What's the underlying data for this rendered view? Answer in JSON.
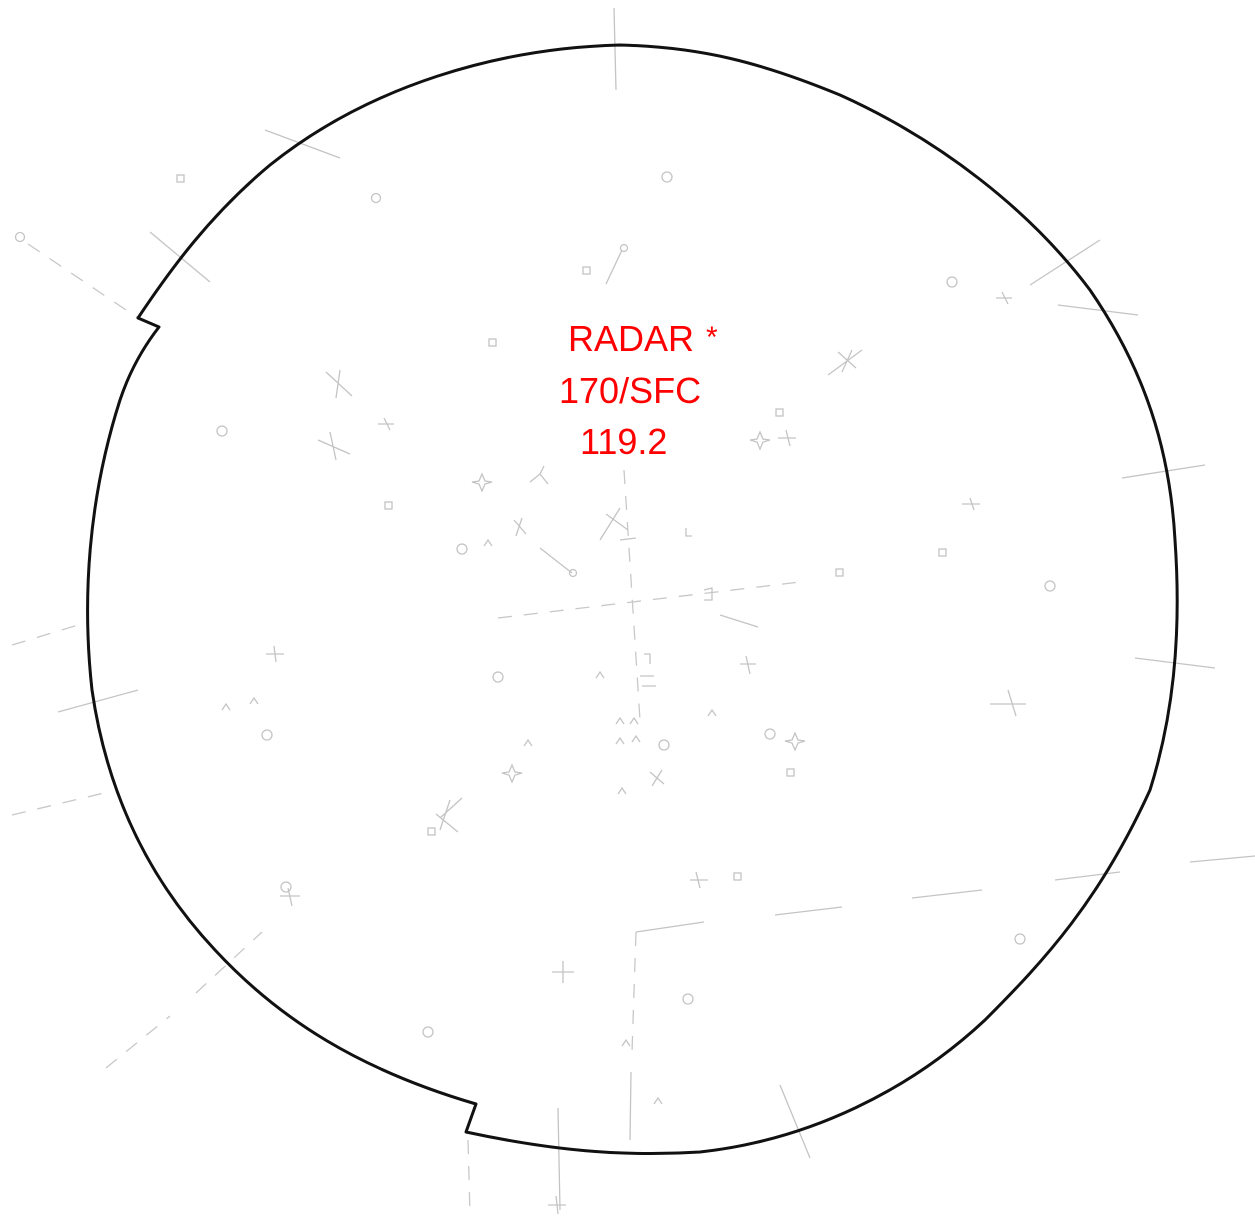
{
  "airspace_label": {
    "type_text": "RADAR",
    "type_marker": "*",
    "altitudes": "170/SFC",
    "frequency": "119.2"
  },
  "colors": {
    "label": "#ff0000",
    "boundary": "#111111",
    "background_features": "#c4c4c4"
  },
  "icons": [
    "asterisk-icon",
    "vor-icon",
    "airport-icon",
    "waypoint-icon",
    "intersection-icon",
    "star-icon"
  ]
}
